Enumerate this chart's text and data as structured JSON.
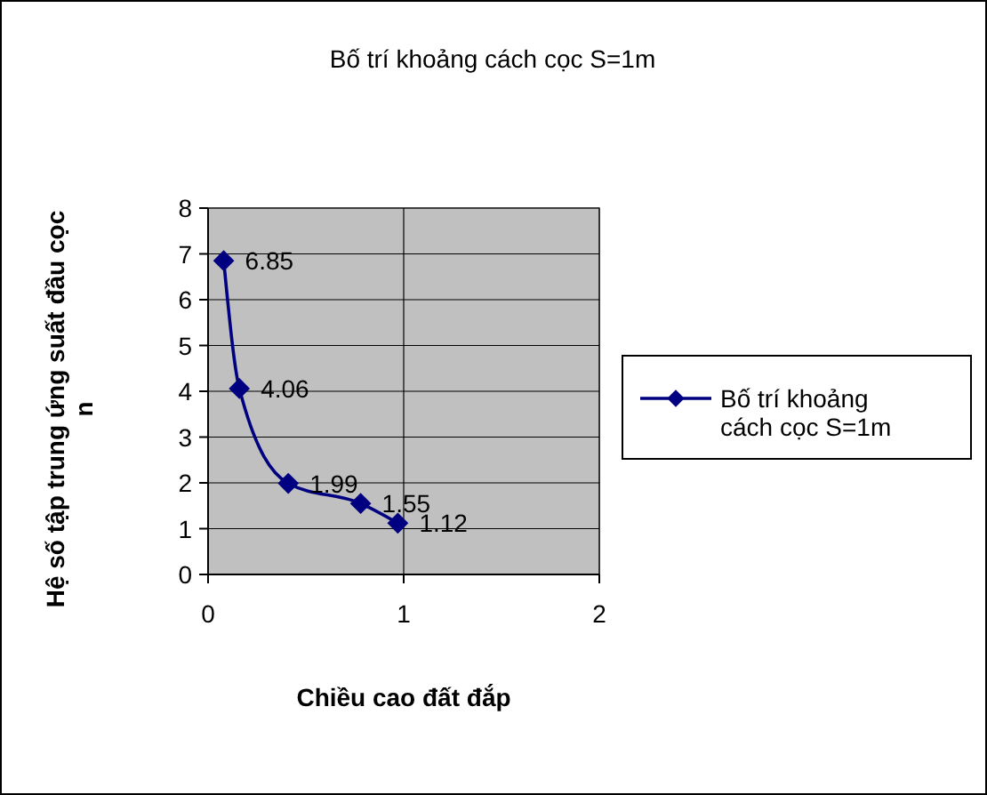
{
  "chart_data": {
    "type": "line",
    "title": "Bố trí khoảng cách cọc S=1m",
    "xlabel": "Chiều cao đất đắp",
    "ylabel": "Hệ số tập trung ứng suất đầu cọc n",
    "x": [
      0.08,
      0.16,
      0.41,
      0.78,
      0.97
    ],
    "series": [
      {
        "name": "Bố trí khoảng cách cọc S=1m",
        "color": "#000080",
        "values": [
          6.85,
          4.06,
          1.99,
          1.55,
          1.12
        ]
      }
    ],
    "xlim": [
      0,
      2
    ],
    "xticks": [
      0,
      1,
      2
    ],
    "ylim": [
      0,
      8
    ],
    "yticks": [
      0,
      1,
      2,
      3,
      4,
      5,
      6,
      7,
      8
    ],
    "grid": true,
    "legend": "right",
    "marker": "diamond",
    "line_style": "solid",
    "data_labels": true
  }
}
